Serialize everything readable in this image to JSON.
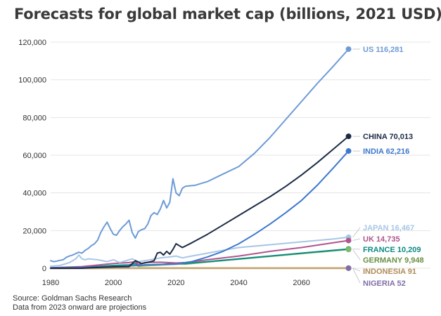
{
  "title": "Forecasts for global market cap (billions, 2021 USD)",
  "source_line1": "Source: Goldman Sachs Research",
  "source_line2": "Data from 2023 onward are projections",
  "chart_data": {
    "type": "line",
    "title": "Forecasts for global market cap (billions, 2021 USD)",
    "xlabel": "",
    "ylabel": "",
    "xlim": [
      1980,
      2076
    ],
    "ylim": [
      0,
      120000
    ],
    "x_ticks": [
      1980,
      2000,
      2020,
      2040,
      2060
    ],
    "y_ticks": [
      0,
      20000,
      40000,
      60000,
      80000,
      100000,
      120000
    ],
    "grid": "horizontal",
    "legend": "direct labels at right end",
    "projection_start": 2023,
    "series": [
      {
        "name": "US",
        "end_label": "US 116,281",
        "color": "#6d9bd6",
        "label_color": "#6d9bd6",
        "points": [
          [
            1980,
            4000
          ],
          [
            1981,
            3500
          ],
          [
            1982,
            3800
          ],
          [
            1983,
            4200
          ],
          [
            1984,
            4500
          ],
          [
            1985,
            5800
          ],
          [
            1986,
            6500
          ],
          [
            1987,
            7000
          ],
          [
            1988,
            7800
          ],
          [
            1989,
            8500
          ],
          [
            1990,
            8000
          ],
          [
            1991,
            9500
          ],
          [
            1992,
            10500
          ],
          [
            1993,
            12000
          ],
          [
            1994,
            13000
          ],
          [
            1995,
            15000
          ],
          [
            1996,
            19000
          ],
          [
            1997,
            22000
          ],
          [
            1998,
            24500
          ],
          [
            1999,
            21000
          ],
          [
            2000,
            18000
          ],
          [
            2001,
            17500
          ],
          [
            2002,
            20000
          ],
          [
            2003,
            22000
          ],
          [
            2004,
            23500
          ],
          [
            2005,
            25500
          ],
          [
            2006,
            19000
          ],
          [
            2007,
            16000
          ],
          [
            2008,
            19500
          ],
          [
            2009,
            20500
          ],
          [
            2010,
            21000
          ],
          [
            2011,
            23500
          ],
          [
            2012,
            28000
          ],
          [
            2013,
            29500
          ],
          [
            2014,
            28500
          ],
          [
            2015,
            31500
          ],
          [
            2016,
            36000
          ],
          [
            2017,
            32000
          ],
          [
            2018,
            35000
          ],
          [
            2019,
            47500
          ],
          [
            2020,
            40000
          ],
          [
            2021,
            38500
          ],
          [
            2022,
            42500
          ],
          [
            2023,
            43500
          ],
          [
            2026,
            44000
          ],
          [
            2030,
            46000
          ],
          [
            2035,
            50000
          ],
          [
            2040,
            54000
          ],
          [
            2045,
            61000
          ],
          [
            2050,
            69500
          ],
          [
            2055,
            79000
          ],
          [
            2060,
            88500
          ],
          [
            2065,
            98000
          ],
          [
            2070,
            107000
          ],
          [
            2075,
            116281
          ]
        ]
      },
      {
        "name": "CHINA",
        "end_label": "CHINA 70,013",
        "color": "#1c2b45",
        "label_color": "#1c2b45",
        "points": [
          [
            1980,
            0
          ],
          [
            1990,
            0
          ],
          [
            1993,
            300
          ],
          [
            2000,
            700
          ],
          [
            2005,
            900
          ],
          [
            2007,
            4000
          ],
          [
            2009,
            2500
          ],
          [
            2012,
            3500
          ],
          [
            2013,
            4000
          ],
          [
            2014,
            8000
          ],
          [
            2015,
            8500
          ],
          [
            2016,
            7000
          ],
          [
            2017,
            9000
          ],
          [
            2018,
            7500
          ],
          [
            2019,
            10000
          ],
          [
            2020,
            13000
          ],
          [
            2021,
            12000
          ],
          [
            2022,
            11000
          ],
          [
            2025,
            13500
          ],
          [
            2030,
            18000
          ],
          [
            2035,
            23000
          ],
          [
            2040,
            28000
          ],
          [
            2045,
            33000
          ],
          [
            2050,
            38000
          ],
          [
            2055,
            43500
          ],
          [
            2060,
            49500
          ],
          [
            2065,
            56000
          ],
          [
            2070,
            63000
          ],
          [
            2075,
            70013
          ]
        ]
      },
      {
        "name": "INDIA",
        "end_label": "INDIA 62,216",
        "color": "#3d78cc",
        "label_color": "#3d78cc",
        "points": [
          [
            1980,
            200
          ],
          [
            1990,
            400
          ],
          [
            2000,
            700
          ],
          [
            2005,
            1200
          ],
          [
            2008,
            1500
          ],
          [
            2010,
            1800
          ],
          [
            2015,
            2000
          ],
          [
            2020,
            2200
          ],
          [
            2023,
            3000
          ],
          [
            2025,
            3500
          ],
          [
            2030,
            6000
          ],
          [
            2035,
            9000
          ],
          [
            2040,
            13000
          ],
          [
            2045,
            18000
          ],
          [
            2050,
            23500
          ],
          [
            2055,
            29500
          ],
          [
            2060,
            36000
          ],
          [
            2065,
            44000
          ],
          [
            2070,
            53000
          ],
          [
            2075,
            62216
          ]
        ]
      },
      {
        "name": "JAPAN",
        "end_label": "JAPAN 16,467",
        "color": "#a8c6e6",
        "label_color": "#a8c6e6",
        "points": [
          [
            1980,
            1000
          ],
          [
            1983,
            1500
          ],
          [
            1986,
            3000
          ],
          [
            1988,
            5000
          ],
          [
            1989,
            7000
          ],
          [
            1990,
            5000
          ],
          [
            1991,
            4500
          ],
          [
            1992,
            5000
          ],
          [
            1995,
            4500
          ],
          [
            1998,
            3500
          ],
          [
            2000,
            4500
          ],
          [
            2002,
            3000
          ],
          [
            2005,
            4500
          ],
          [
            2006,
            5000
          ],
          [
            2008,
            3500
          ],
          [
            2010,
            4000
          ],
          [
            2012,
            4500
          ],
          [
            2015,
            5500
          ],
          [
            2018,
            6000
          ],
          [
            2020,
            6500
          ],
          [
            2022,
            5500
          ],
          [
            2025,
            6500
          ],
          [
            2030,
            8000
          ],
          [
            2035,
            9500
          ],
          [
            2040,
            11000
          ],
          [
            2050,
            12500
          ],
          [
            2060,
            14000
          ],
          [
            2070,
            15500
          ],
          [
            2075,
            16467
          ]
        ]
      },
      {
        "name": "UK",
        "end_label": "UK 14,735",
        "color": "#b0558e",
        "label_color": "#b0558e",
        "points": [
          [
            1980,
            300
          ],
          [
            1990,
            900
          ],
          [
            2000,
            2500
          ],
          [
            2005,
            3000
          ],
          [
            2007,
            3500
          ],
          [
            2008,
            2000
          ],
          [
            2010,
            3000
          ],
          [
            2015,
            3200
          ],
          [
            2020,
            2800
          ],
          [
            2023,
            3000
          ],
          [
            2030,
            4500
          ],
          [
            2040,
            6500
          ],
          [
            2050,
            9000
          ],
          [
            2060,
            11000
          ],
          [
            2070,
            13500
          ],
          [
            2075,
            14735
          ]
        ]
      },
      {
        "name": "FRANCE",
        "end_label": "FRANCE 10,209",
        "color": "#0b8a83",
        "label_color": "#0b8a83",
        "points": [
          [
            1980,
            200
          ],
          [
            1990,
            500
          ],
          [
            2000,
            1500
          ],
          [
            2005,
            1800
          ],
          [
            2007,
            2500
          ],
          [
            2008,
            1500
          ],
          [
            2010,
            1800
          ],
          [
            2015,
            2000
          ],
          [
            2020,
            2500
          ],
          [
            2023,
            2500
          ],
          [
            2030,
            3500
          ],
          [
            2040,
            5000
          ],
          [
            2050,
            6500
          ],
          [
            2060,
            8000
          ],
          [
            2070,
            9500
          ],
          [
            2075,
            10209
          ]
        ]
      },
      {
        "name": "GERMANY",
        "end_label": "GERMANY 9,948",
        "color": "#7ebb6b",
        "label_color": "#6a8f45",
        "points": [
          [
            1980,
            200
          ],
          [
            1990,
            400
          ],
          [
            2000,
            1200
          ],
          [
            2005,
            1300
          ],
          [
            2007,
            2000
          ],
          [
            2008,
            1000
          ],
          [
            2010,
            1300
          ],
          [
            2015,
            1700
          ],
          [
            2020,
            2200
          ],
          [
            2023,
            2200
          ],
          [
            2030,
            3300
          ],
          [
            2040,
            4800
          ],
          [
            2050,
            6300
          ],
          [
            2060,
            7800
          ],
          [
            2070,
            9200
          ],
          [
            2075,
            9948
          ]
        ]
      },
      {
        "name": "INDONESIA",
        "end_label": "INDONESIA 91",
        "color": "#c8a46b",
        "label_color": "#b08a56",
        "points": [
          [
            1980,
            0
          ],
          [
            2000,
            50
          ],
          [
            2020,
            70
          ],
          [
            2075,
            91
          ]
        ]
      },
      {
        "name": "NIGERIA",
        "end_label": "NIGERIA 52",
        "color": "#7e6fa8",
        "label_color": "#7e6fa8",
        "points": [
          [
            1980,
            0
          ],
          [
            2000,
            20
          ],
          [
            2020,
            30
          ],
          [
            2075,
            52
          ]
        ]
      }
    ]
  }
}
